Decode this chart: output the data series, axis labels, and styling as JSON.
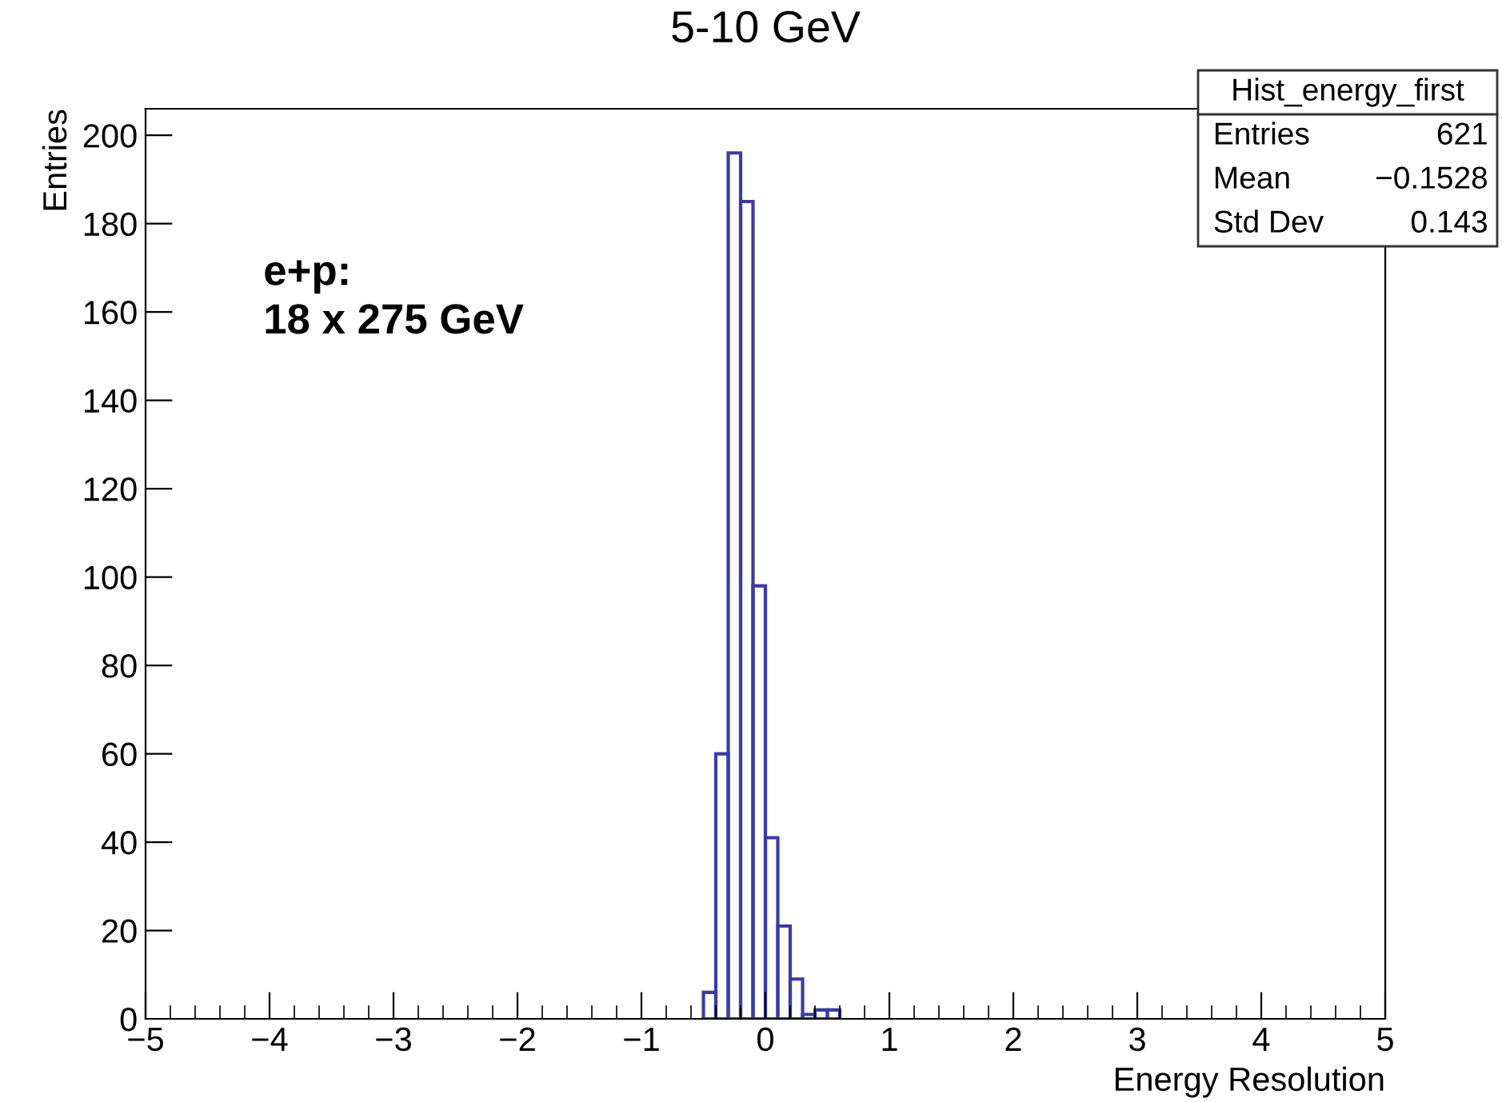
{
  "chart_data": {
    "type": "histogram",
    "title": "5-10 GeV",
    "xlabel": "Energy Resolution",
    "ylabel": "Entries",
    "bins": [
      -0.5,
      -0.4,
      -0.3,
      -0.2,
      -0.1,
      0.0,
      0.1,
      0.2,
      0.3,
      0.4,
      0.5,
      0.6
    ],
    "values": [
      6,
      60,
      196,
      185,
      98,
      41,
      21,
      9,
      1,
      2,
      2
    ],
    "color": "#3a3aaa",
    "xlim": [
      -5,
      5
    ],
    "xticks": [
      {
        "value": -5,
        "label": "−5"
      },
      {
        "value": -4,
        "label": "−4"
      },
      {
        "value": -3,
        "label": "−3"
      },
      {
        "value": -2,
        "label": "−2"
      },
      {
        "value": -1,
        "label": "−1"
      },
      0,
      1,
      2,
      3,
      4,
      5
    ],
    "ylim": [
      0,
      206
    ],
    "yticks": [
      0,
      20,
      40,
      60,
      80,
      100,
      120,
      140,
      160,
      180,
      200
    ],
    "grid": false,
    "annotations": [
      "e+p:\n18 x 275 GeV",
      "Hist_energy_first",
      "Entries",
      "621",
      "Mean",
      "−0.1528",
      "Std Dev",
      "0.143"
    ]
  }
}
